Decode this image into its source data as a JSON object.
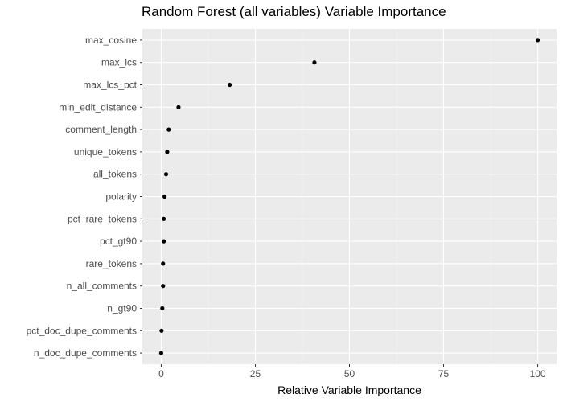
{
  "chart_data": {
    "type": "scatter",
    "title": "Random Forest (all variables) Variable Importance",
    "xlabel": "Relative Variable Importance",
    "ylabel": "",
    "xlim": [
      -5,
      105
    ],
    "xticks": [
      0,
      25,
      50,
      75,
      100
    ],
    "grid": true,
    "categories": [
      "max_cosine",
      "max_lcs",
      "max_lcs_pct",
      "min_edit_distance",
      "comment_length",
      "unique_tokens",
      "all_tokens",
      "polarity",
      "pct_rare_tokens",
      "pct_gt90",
      "rare_tokens",
      "n_all_comments",
      "n_gt90",
      "pct_doc_dupe_comments",
      "n_doc_dupe_comments"
    ],
    "values": [
      100,
      40.7,
      18.2,
      4.6,
      2.0,
      1.6,
      1.3,
      0.9,
      0.7,
      0.7,
      0.5,
      0.5,
      0.3,
      0.1,
      0.0
    ],
    "colors": {
      "panel": "#ebebeb",
      "grid_major": "#ffffff",
      "grid_minor": "#f3f3f3",
      "point": "#000000",
      "tick_text": "#4d4d4d"
    }
  }
}
